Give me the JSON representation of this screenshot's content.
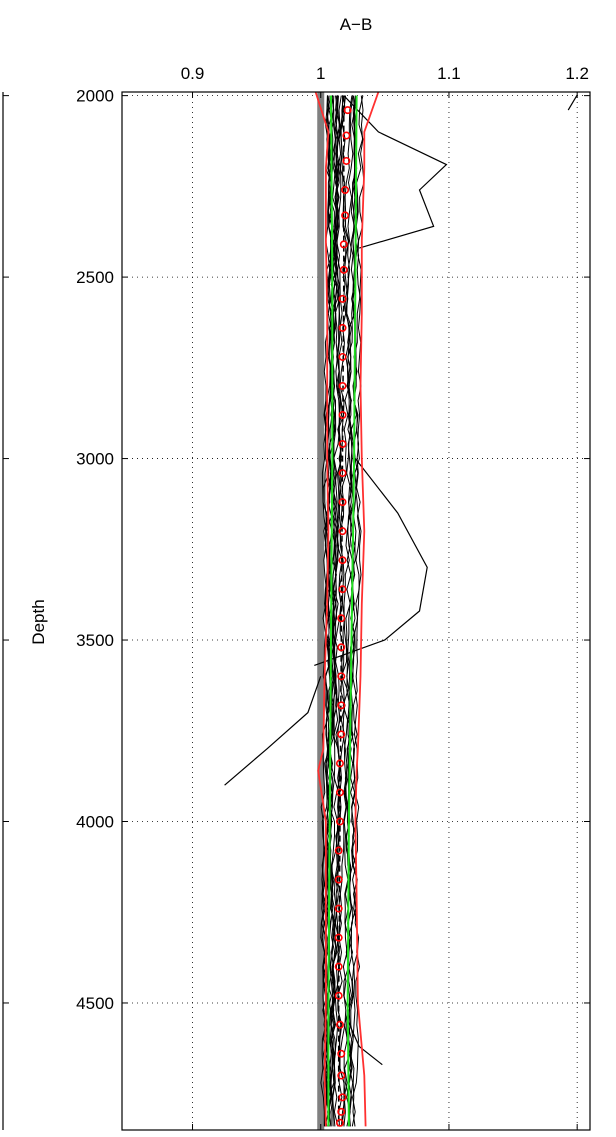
{
  "chart_data": {
    "type": "line",
    "title": "A−B",
    "xlabel": "",
    "ylabel": "Depth",
    "xlim": [
      0.845,
      1.21
    ],
    "ylim": [
      1990,
      4850
    ],
    "y_reversed": true,
    "x_axis_position": "top",
    "grid": true,
    "x_ticks": [
      0.9,
      1,
      1.1,
      1.2
    ],
    "x_tick_labels": [
      "0.9",
      "1",
      "1.1",
      "1.2"
    ],
    "y_ticks": [
      2000,
      2500,
      3000,
      3500,
      4000,
      4500
    ],
    "y_tick_labels": [
      "2000",
      "2500",
      "3000",
      "3500",
      "4000",
      "4500"
    ],
    "colors": {
      "profiles": "#000000",
      "envelope": "#ff3030",
      "band": "#22e022",
      "reference": "#808080",
      "mean_markers": "#ff0000",
      "median": "#000000"
    },
    "reference_line": {
      "x": 1.0
    },
    "band": {
      "depth": [
        2000,
        2500,
        3000,
        3500,
        4000,
        4500,
        4840
      ],
      "lower": [
        1.008,
        1.009,
        1.009,
        1.008,
        1.007,
        1.006,
        1.006
      ],
      "upper": [
        1.028,
        1.027,
        1.026,
        1.024,
        1.022,
        1.021,
        1.022
      ]
    },
    "envelope": {
      "depth": [
        1990,
        2100,
        2200,
        2400,
        2600,
        2800,
        3000,
        3200,
        3400,
        3600,
        3800,
        3860,
        4000,
        4200,
        4500,
        4700,
        4840
      ],
      "lower": [
        0.996,
        1.006,
        1.004,
        1.004,
        1.005,
        1.005,
        1.005,
        1.006,
        1.005,
        1.003,
        1.002,
        0.998,
        1.004,
        1.004,
        1.004,
        1.003,
        1.004
      ],
      "upper": [
        1.045,
        1.034,
        1.034,
        1.032,
        1.032,
        1.031,
        1.032,
        1.034,
        1.032,
        1.031,
        1.029,
        1.028,
        1.027,
        1.028,
        1.029,
        1.034,
        1.035
      ]
    },
    "mean_profile": {
      "depth": [
        2040,
        2110,
        2180,
        2260,
        2330,
        2410,
        2480,
        2560,
        2640,
        2720,
        2800,
        2880,
        2960,
        3040,
        3120,
        3200,
        3280,
        3360,
        3440,
        3520,
        3600,
        3680,
        3760,
        3840,
        3920,
        4000,
        4080,
        4160,
        4240,
        4320,
        4400,
        4480,
        4560,
        4640,
        4700,
        4760,
        4800,
        4830
      ],
      "value": [
        1.021,
        1.02,
        1.02,
        1.019,
        1.019,
        1.018,
        1.018,
        1.017,
        1.017,
        1.017,
        1.017,
        1.017,
        1.017,
        1.017,
        1.017,
        1.017,
        1.017,
        1.017,
        1.016,
        1.016,
        1.016,
        1.016,
        1.016,
        1.015,
        1.015,
        1.015,
        1.014,
        1.014,
        1.014,
        1.014,
        1.014,
        1.014,
        1.015,
        1.016,
        1.016,
        1.017,
        1.016,
        1.015
      ]
    },
    "median_profile": {
      "depth": [
        2000,
        2500,
        3000,
        3500,
        4000,
        4500,
        4840
      ],
      "value": [
        1.018,
        1.018,
        1.017,
        1.016,
        1.015,
        1.014,
        1.014
      ]
    },
    "outlier_profiles": [
      {
        "depth": [
          2000,
          2100,
          2190,
          2260,
          2360,
          2420
        ],
        "value": [
          1.018,
          1.045,
          1.098,
          1.077,
          1.088,
          1.03
        ]
      },
      {
        "depth": [
          3000,
          3150,
          3300,
          3420,
          3500,
          3570
        ],
        "value": [
          1.027,
          1.06,
          1.083,
          1.077,
          1.05,
          0.995
        ]
      },
      {
        "depth": [
          3600,
          3700,
          3800,
          3900
        ],
        "value": [
          1.0,
          0.99,
          0.958,
          0.925
        ]
      },
      {
        "depth": [
          1998,
          2040
        ],
        "value": [
          1.2,
          1.193
        ]
      },
      {
        "depth": [
          4540,
          4620,
          4670
        ],
        "value": [
          1.02,
          1.03,
          1.048
        ]
      }
    ]
  }
}
